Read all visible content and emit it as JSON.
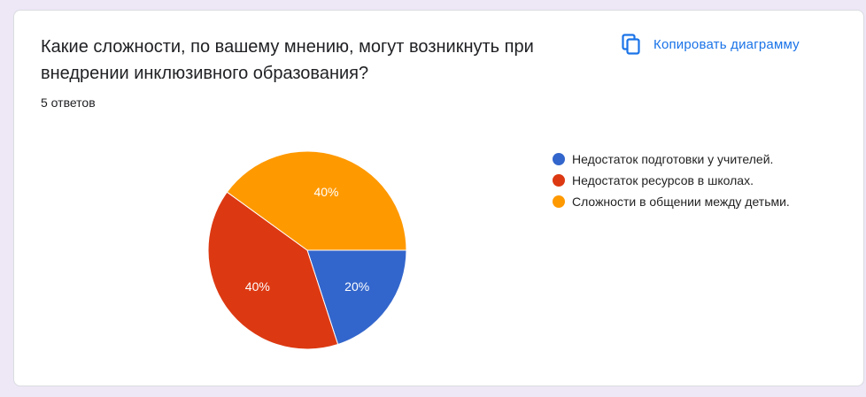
{
  "question": {
    "title": "Какие сложности, по вашему мнению, могут возникнуть при внедрении инклюзивного образования?",
    "responses": "5 ответов"
  },
  "copy_button": {
    "label": "Копировать диаграмму",
    "icon": "copy-icon",
    "color": "#1a73e8"
  },
  "chart_data": {
    "type": "pie",
    "categories": [
      "Недостаток подготовки у учителей.",
      "Недостаток ресурсов в школах.",
      "Сложности в общении между детьми."
    ],
    "values": [
      20,
      40,
      40
    ],
    "labels": [
      "20%",
      "40%",
      "40%"
    ],
    "colors": [
      "#3366cc",
      "#dc3912",
      "#ff9900"
    ],
    "legend_position": "right"
  }
}
